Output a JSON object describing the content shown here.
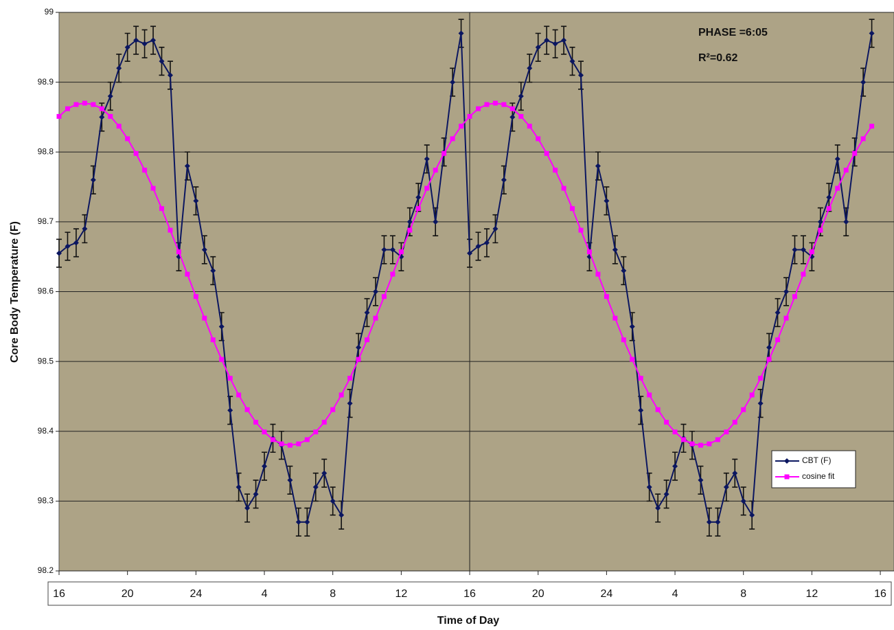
{
  "chart_data": {
    "type": "line",
    "x_label": "Time of Day",
    "y_label": "Core Body Temperature (F)",
    "annotations": [
      "PHASE =6:05",
      "R²=0.62"
    ],
    "x": [
      16,
      16.5,
      17,
      17.5,
      18,
      18.5,
      19,
      19.5,
      20,
      20.5,
      21,
      21.5,
      22,
      22.5,
      23,
      23.5,
      24,
      24.5,
      25,
      25.5,
      26,
      26.5,
      27,
      27.5,
      28,
      28.5,
      29,
      29.5,
      30,
      30.5,
      31,
      31.5,
      32,
      32.5,
      33,
      33.5,
      34,
      34.5,
      35,
      35.5,
      36,
      36.5,
      37,
      37.5,
      38,
      38.5,
      39,
      39.5,
      40,
      40.5,
      41,
      41.5,
      42,
      42.5,
      43,
      43.5,
      44,
      44.5,
      45,
      45.5,
      46,
      46.5,
      47,
      47.5,
      48,
      48.5,
      49,
      49.5,
      50,
      50.5,
      51,
      51.5,
      52,
      52.5,
      53,
      53.5,
      54,
      54.5,
      55,
      55.5,
      56,
      56.5,
      57,
      57.5,
      58,
      58.5,
      59,
      59.5,
      60,
      60.5,
      61,
      61.5,
      62,
      62.5,
      63,
      63.5
    ],
    "series": [
      {
        "name": "CBT (F)",
        "color": "#0b1660",
        "marker": "diamond",
        "error": 0.02,
        "values": [
          98.655,
          98.665,
          98.67,
          98.69,
          98.76,
          98.85,
          98.88,
          98.92,
          98.95,
          98.96,
          98.955,
          98.96,
          98.93,
          98.91,
          98.65,
          98.78,
          98.73,
          98.66,
          98.63,
          98.55,
          98.43,
          98.32,
          98.29,
          98.31,
          98.35,
          98.39,
          98.38,
          98.33,
          98.27,
          98.27,
          98.32,
          98.34,
          98.3,
          98.28,
          98.44,
          98.52,
          98.57,
          98.6,
          98.66,
          98.66,
          98.65,
          98.7,
          98.735,
          98.79,
          98.7,
          98.8,
          98.9,
          98.97,
          98.655,
          98.665,
          98.67,
          98.69,
          98.76,
          98.85,
          98.88,
          98.92,
          98.95,
          98.96,
          98.955,
          98.96,
          98.93,
          98.91,
          98.65,
          98.78,
          98.73,
          98.66,
          98.63,
          98.55,
          98.43,
          98.32,
          98.29,
          98.31,
          98.35,
          98.39,
          98.38,
          98.33,
          98.27,
          98.27,
          98.32,
          98.34,
          98.3,
          98.28,
          98.44,
          98.52,
          98.57,
          98.6,
          98.66,
          98.66,
          98.65,
          98.7,
          98.735,
          98.79,
          98.7,
          98.8,
          98.9,
          98.97
        ]
      },
      {
        "name": "cosine fit",
        "color": "#ff00ff",
        "marker": "square",
        "values": [
          98.851,
          98.862,
          98.868,
          98.87,
          98.868,
          98.862,
          98.851,
          98.837,
          98.819,
          98.798,
          98.774,
          98.748,
          98.719,
          98.688,
          98.657,
          98.625,
          98.593,
          98.562,
          98.531,
          98.503,
          98.476,
          98.452,
          98.431,
          98.413,
          98.399,
          98.388,
          98.382,
          98.38,
          98.382,
          98.388,
          98.399,
          98.413,
          98.431,
          98.452,
          98.476,
          98.503,
          98.531,
          98.562,
          98.593,
          98.625,
          98.657,
          98.688,
          98.719,
          98.748,
          98.774,
          98.798,
          98.819,
          98.837,
          98.851,
          98.862,
          98.868,
          98.87,
          98.868,
          98.862,
          98.851,
          98.837,
          98.819,
          98.798,
          98.774,
          98.748,
          98.719,
          98.688,
          98.657,
          98.625,
          98.593,
          98.562,
          98.531,
          98.503,
          98.476,
          98.452,
          98.431,
          98.413,
          98.399,
          98.388,
          98.382,
          98.38,
          98.382,
          98.388,
          98.399,
          98.413,
          98.431,
          98.452,
          98.476,
          98.503,
          98.531,
          98.562,
          98.593,
          98.625,
          98.657,
          98.688,
          98.719,
          98.748,
          98.774,
          98.798,
          98.819,
          98.837
        ]
      }
    ],
    "xlim": [
      16,
      64.8
    ],
    "xticks": [
      16,
      20,
      24,
      {
        "value": 28,
        "label": "4"
      },
      {
        "value": 32,
        "label": "8"
      },
      {
        "value": 36,
        "label": "12"
      },
      {
        "value": 40,
        "label": "16"
      },
      {
        "value": 44,
        "label": "20"
      },
      {
        "value": 48,
        "label": "24"
      },
      {
        "value": 52,
        "label": "4"
      },
      {
        "value": 56,
        "label": "8"
      },
      {
        "value": 60,
        "label": "12"
      },
      {
        "value": 64,
        "label": "16"
      }
    ],
    "ylim": [
      98.2,
      99
    ],
    "yticks": [
      98.2,
      98.3,
      98.4,
      98.5,
      98.6,
      98.7,
      98.8,
      98.9,
      99
    ],
    "vline": 40,
    "grid": true,
    "background": "#ada386",
    "legend": "lower right"
  }
}
